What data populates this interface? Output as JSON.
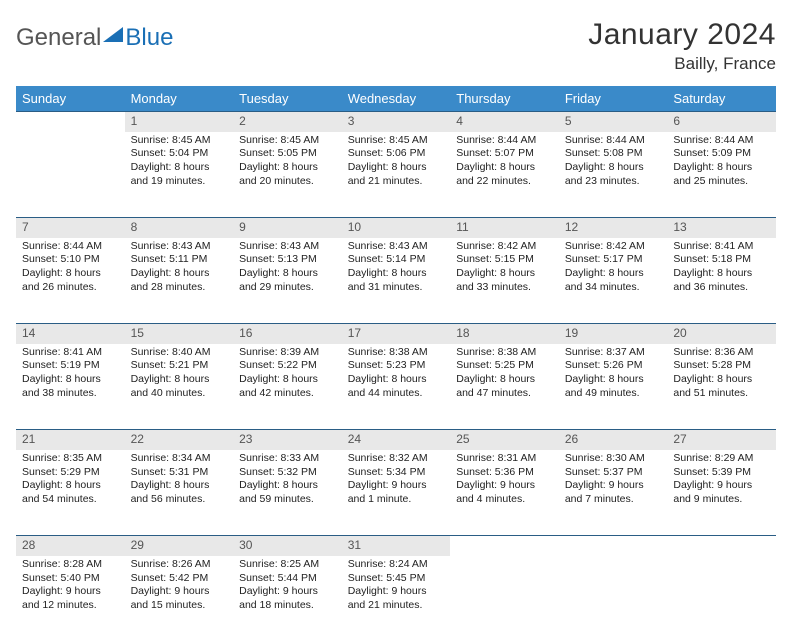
{
  "brand": {
    "part1": "General",
    "part2": "Blue"
  },
  "title": "January 2024",
  "location": "Bailly, France",
  "colors": {
    "header_bg": "#3a8ac9",
    "row_divider": "#2a5d85",
    "daynum_bg": "#e8e8e8",
    "brand_accent": "#1a6fb5"
  },
  "day_headers": [
    "Sunday",
    "Monday",
    "Tuesday",
    "Wednesday",
    "Thursday",
    "Friday",
    "Saturday"
  ],
  "weeks": [
    [
      {
        "n": "",
        "sunrise": "",
        "sunset": "",
        "daylight": ""
      },
      {
        "n": "1",
        "sunrise": "Sunrise: 8:45 AM",
        "sunset": "Sunset: 5:04 PM",
        "daylight": "Daylight: 8 hours and 19 minutes."
      },
      {
        "n": "2",
        "sunrise": "Sunrise: 8:45 AM",
        "sunset": "Sunset: 5:05 PM",
        "daylight": "Daylight: 8 hours and 20 minutes."
      },
      {
        "n": "3",
        "sunrise": "Sunrise: 8:45 AM",
        "sunset": "Sunset: 5:06 PM",
        "daylight": "Daylight: 8 hours and 21 minutes."
      },
      {
        "n": "4",
        "sunrise": "Sunrise: 8:44 AM",
        "sunset": "Sunset: 5:07 PM",
        "daylight": "Daylight: 8 hours and 22 minutes."
      },
      {
        "n": "5",
        "sunrise": "Sunrise: 8:44 AM",
        "sunset": "Sunset: 5:08 PM",
        "daylight": "Daylight: 8 hours and 23 minutes."
      },
      {
        "n": "6",
        "sunrise": "Sunrise: 8:44 AM",
        "sunset": "Sunset: 5:09 PM",
        "daylight": "Daylight: 8 hours and 25 minutes."
      }
    ],
    [
      {
        "n": "7",
        "sunrise": "Sunrise: 8:44 AM",
        "sunset": "Sunset: 5:10 PM",
        "daylight": "Daylight: 8 hours and 26 minutes."
      },
      {
        "n": "8",
        "sunrise": "Sunrise: 8:43 AM",
        "sunset": "Sunset: 5:11 PM",
        "daylight": "Daylight: 8 hours and 28 minutes."
      },
      {
        "n": "9",
        "sunrise": "Sunrise: 8:43 AM",
        "sunset": "Sunset: 5:13 PM",
        "daylight": "Daylight: 8 hours and 29 minutes."
      },
      {
        "n": "10",
        "sunrise": "Sunrise: 8:43 AM",
        "sunset": "Sunset: 5:14 PM",
        "daylight": "Daylight: 8 hours and 31 minutes."
      },
      {
        "n": "11",
        "sunrise": "Sunrise: 8:42 AM",
        "sunset": "Sunset: 5:15 PM",
        "daylight": "Daylight: 8 hours and 33 minutes."
      },
      {
        "n": "12",
        "sunrise": "Sunrise: 8:42 AM",
        "sunset": "Sunset: 5:17 PM",
        "daylight": "Daylight: 8 hours and 34 minutes."
      },
      {
        "n": "13",
        "sunrise": "Sunrise: 8:41 AM",
        "sunset": "Sunset: 5:18 PM",
        "daylight": "Daylight: 8 hours and 36 minutes."
      }
    ],
    [
      {
        "n": "14",
        "sunrise": "Sunrise: 8:41 AM",
        "sunset": "Sunset: 5:19 PM",
        "daylight": "Daylight: 8 hours and 38 minutes."
      },
      {
        "n": "15",
        "sunrise": "Sunrise: 8:40 AM",
        "sunset": "Sunset: 5:21 PM",
        "daylight": "Daylight: 8 hours and 40 minutes."
      },
      {
        "n": "16",
        "sunrise": "Sunrise: 8:39 AM",
        "sunset": "Sunset: 5:22 PM",
        "daylight": "Daylight: 8 hours and 42 minutes."
      },
      {
        "n": "17",
        "sunrise": "Sunrise: 8:38 AM",
        "sunset": "Sunset: 5:23 PM",
        "daylight": "Daylight: 8 hours and 44 minutes."
      },
      {
        "n": "18",
        "sunrise": "Sunrise: 8:38 AM",
        "sunset": "Sunset: 5:25 PM",
        "daylight": "Daylight: 8 hours and 47 minutes."
      },
      {
        "n": "19",
        "sunrise": "Sunrise: 8:37 AM",
        "sunset": "Sunset: 5:26 PM",
        "daylight": "Daylight: 8 hours and 49 minutes."
      },
      {
        "n": "20",
        "sunrise": "Sunrise: 8:36 AM",
        "sunset": "Sunset: 5:28 PM",
        "daylight": "Daylight: 8 hours and 51 minutes."
      }
    ],
    [
      {
        "n": "21",
        "sunrise": "Sunrise: 8:35 AM",
        "sunset": "Sunset: 5:29 PM",
        "daylight": "Daylight: 8 hours and 54 minutes."
      },
      {
        "n": "22",
        "sunrise": "Sunrise: 8:34 AM",
        "sunset": "Sunset: 5:31 PM",
        "daylight": "Daylight: 8 hours and 56 minutes."
      },
      {
        "n": "23",
        "sunrise": "Sunrise: 8:33 AM",
        "sunset": "Sunset: 5:32 PM",
        "daylight": "Daylight: 8 hours and 59 minutes."
      },
      {
        "n": "24",
        "sunrise": "Sunrise: 8:32 AM",
        "sunset": "Sunset: 5:34 PM",
        "daylight": "Daylight: 9 hours and 1 minute."
      },
      {
        "n": "25",
        "sunrise": "Sunrise: 8:31 AM",
        "sunset": "Sunset: 5:36 PM",
        "daylight": "Daylight: 9 hours and 4 minutes."
      },
      {
        "n": "26",
        "sunrise": "Sunrise: 8:30 AM",
        "sunset": "Sunset: 5:37 PM",
        "daylight": "Daylight: 9 hours and 7 minutes."
      },
      {
        "n": "27",
        "sunrise": "Sunrise: 8:29 AM",
        "sunset": "Sunset: 5:39 PM",
        "daylight": "Daylight: 9 hours and 9 minutes."
      }
    ],
    [
      {
        "n": "28",
        "sunrise": "Sunrise: 8:28 AM",
        "sunset": "Sunset: 5:40 PM",
        "daylight": "Daylight: 9 hours and 12 minutes."
      },
      {
        "n": "29",
        "sunrise": "Sunrise: 8:26 AM",
        "sunset": "Sunset: 5:42 PM",
        "daylight": "Daylight: 9 hours and 15 minutes."
      },
      {
        "n": "30",
        "sunrise": "Sunrise: 8:25 AM",
        "sunset": "Sunset: 5:44 PM",
        "daylight": "Daylight: 9 hours and 18 minutes."
      },
      {
        "n": "31",
        "sunrise": "Sunrise: 8:24 AM",
        "sunset": "Sunset: 5:45 PM",
        "daylight": "Daylight: 9 hours and 21 minutes."
      },
      {
        "n": "",
        "sunrise": "",
        "sunset": "",
        "daylight": ""
      },
      {
        "n": "",
        "sunrise": "",
        "sunset": "",
        "daylight": ""
      },
      {
        "n": "",
        "sunrise": "",
        "sunset": "",
        "daylight": ""
      }
    ]
  ]
}
